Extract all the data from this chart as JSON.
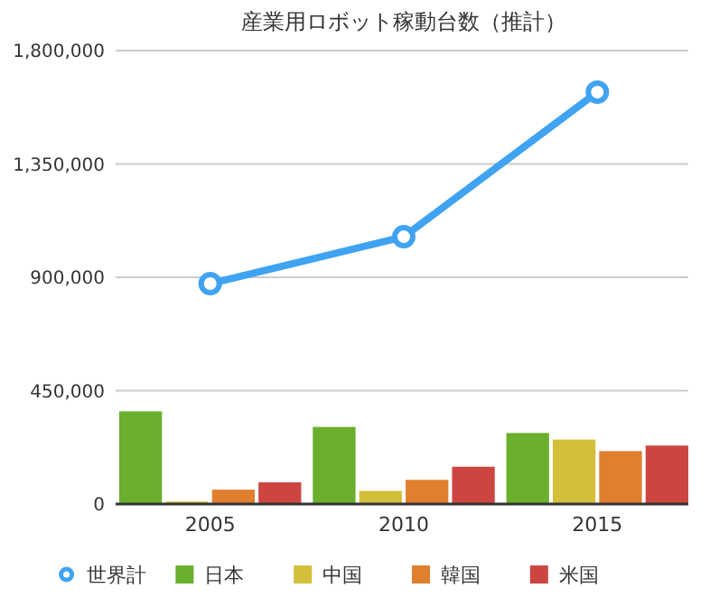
{
  "chart_data": {
    "type": "bar",
    "title": "産業用ロボット稼動台数（推計）",
    "categories": [
      "2005",
      "2010",
      "2015"
    ],
    "series": [
      {
        "name": "世界計",
        "type": "line",
        "color": "#3fa3f2",
        "marker": "circle",
        "values": [
          875000,
          1061000,
          1635000
        ]
      },
      {
        "name": "日本",
        "color": "#6aaf2d",
        "values": [
          368000,
          306000,
          282000
        ]
      },
      {
        "name": "中国",
        "color": "#d4bf3a",
        "values": [
          10000,
          52000,
          256000
        ]
      },
      {
        "name": "韓国",
        "color": "#e07f2e",
        "values": [
          57000,
          96000,
          210000
        ]
      },
      {
        "name": "米国",
        "color": "#cc4540",
        "values": [
          86000,
          148000,
          232000
        ]
      }
    ],
    "ylim": [
      0,
      1800000
    ],
    "yticks": [
      {
        "value": 0,
        "label": "0"
      },
      {
        "value": 450000,
        "label": "450,000"
      },
      {
        "value": 900000,
        "label": "900,000"
      },
      {
        "value": 1350000,
        "label": "1,350,000"
      },
      {
        "value": 1800000,
        "label": "1,800,000"
      }
    ],
    "grid": "y",
    "legend": "bottom"
  }
}
